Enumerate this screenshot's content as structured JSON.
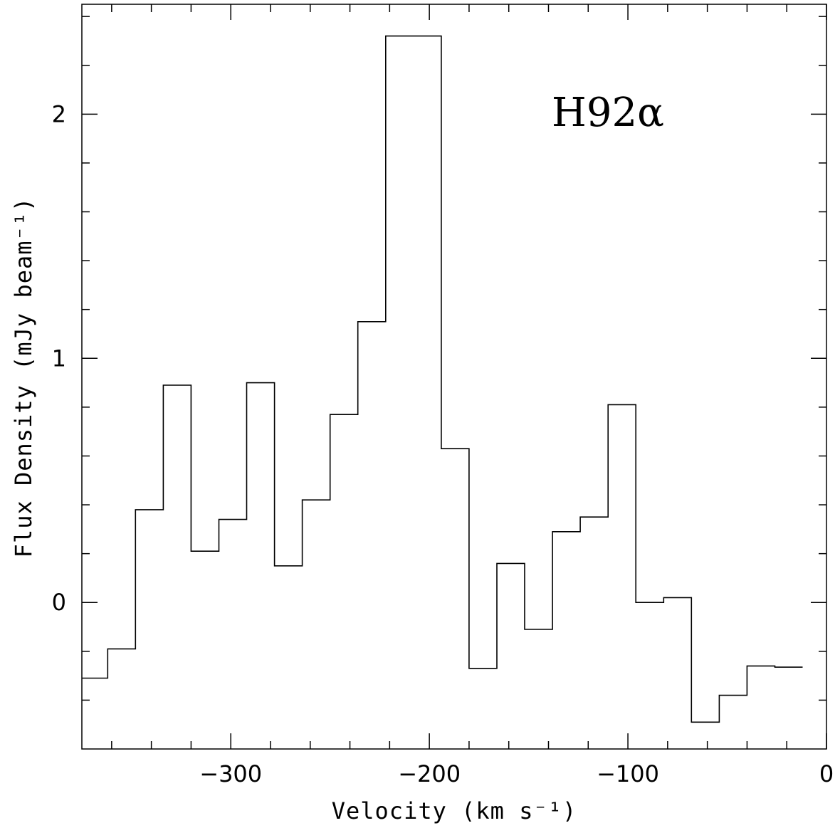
{
  "chart_data": {
    "type": "line",
    "style": "step",
    "annotation": "H92α",
    "title": "",
    "xlabel": "Velocity (km s⁻¹)",
    "ylabel": "Flux Density (mJy beam⁻¹)",
    "xlim": [
      -375,
      0
    ],
    "ylim": [
      -0.6,
      2.45
    ],
    "xticks_major": [
      -300,
      -200,
      -100,
      0
    ],
    "xtick_labels": [
      "−300",
      "−200",
      "−100",
      "0"
    ],
    "yticks_major": [
      0,
      1,
      2
    ],
    "ytick_labels": [
      "0",
      "1",
      "2"
    ],
    "grid": false,
    "legend": "none",
    "color": "#000000",
    "series": [
      {
        "bin_edges": [
          -375,
          -362,
          -348,
          -334,
          -320,
          -306,
          -292,
          -278,
          -264,
          -250,
          -236,
          -222,
          -208,
          -194,
          -180,
          -166,
          -152,
          -138,
          -124,
          -110,
          -96,
          -82,
          -68,
          -54,
          -40,
          -26,
          -12
        ],
        "values": [
          -0.31,
          -0.19,
          0.38,
          0.89,
          0.21,
          0.34,
          0.9,
          0.15,
          0.42,
          0.77,
          1.15,
          2.32,
          2.32,
          0.63,
          -0.27,
          0.16,
          -0.11,
          0.29,
          0.35,
          0.81,
          0.0,
          0.02,
          -0.49,
          -0.38,
          -0.26,
          -0.265
        ]
      }
    ]
  }
}
